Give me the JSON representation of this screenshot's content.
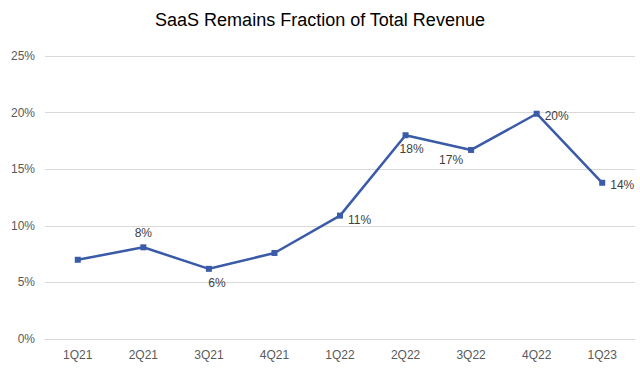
{
  "chart_data": {
    "type": "line",
    "title": "SaaS Remains Fraction of Total Revenue",
    "categories": [
      "1Q21",
      "2Q21",
      "3Q21",
      "4Q21",
      "1Q22",
      "2Q22",
      "3Q22",
      "4Q22",
      "1Q23"
    ],
    "values": [
      7.0,
      8.1,
      6.2,
      7.6,
      10.9,
      18.0,
      16.7,
      19.9,
      13.8
    ],
    "value_labels": [
      null,
      "8%",
      "6%",
      null,
      "11%",
      "18%",
      "17%",
      "20%",
      "14%"
    ],
    "data_labels": true,
    "color": "#3a5ba8",
    "marker": "square",
    "ylim": [
      0,
      25
    ],
    "yticks": [
      {
        "value": 0,
        "label": "0%"
      },
      {
        "value": 5,
        "label": "5%"
      },
      {
        "value": 10,
        "label": "10%"
      },
      {
        "value": 15,
        "label": "15%"
      },
      {
        "value": 20,
        "label": "20%"
      },
      {
        "value": 25,
        "label": "25%"
      }
    ],
    "grid": true
  }
}
